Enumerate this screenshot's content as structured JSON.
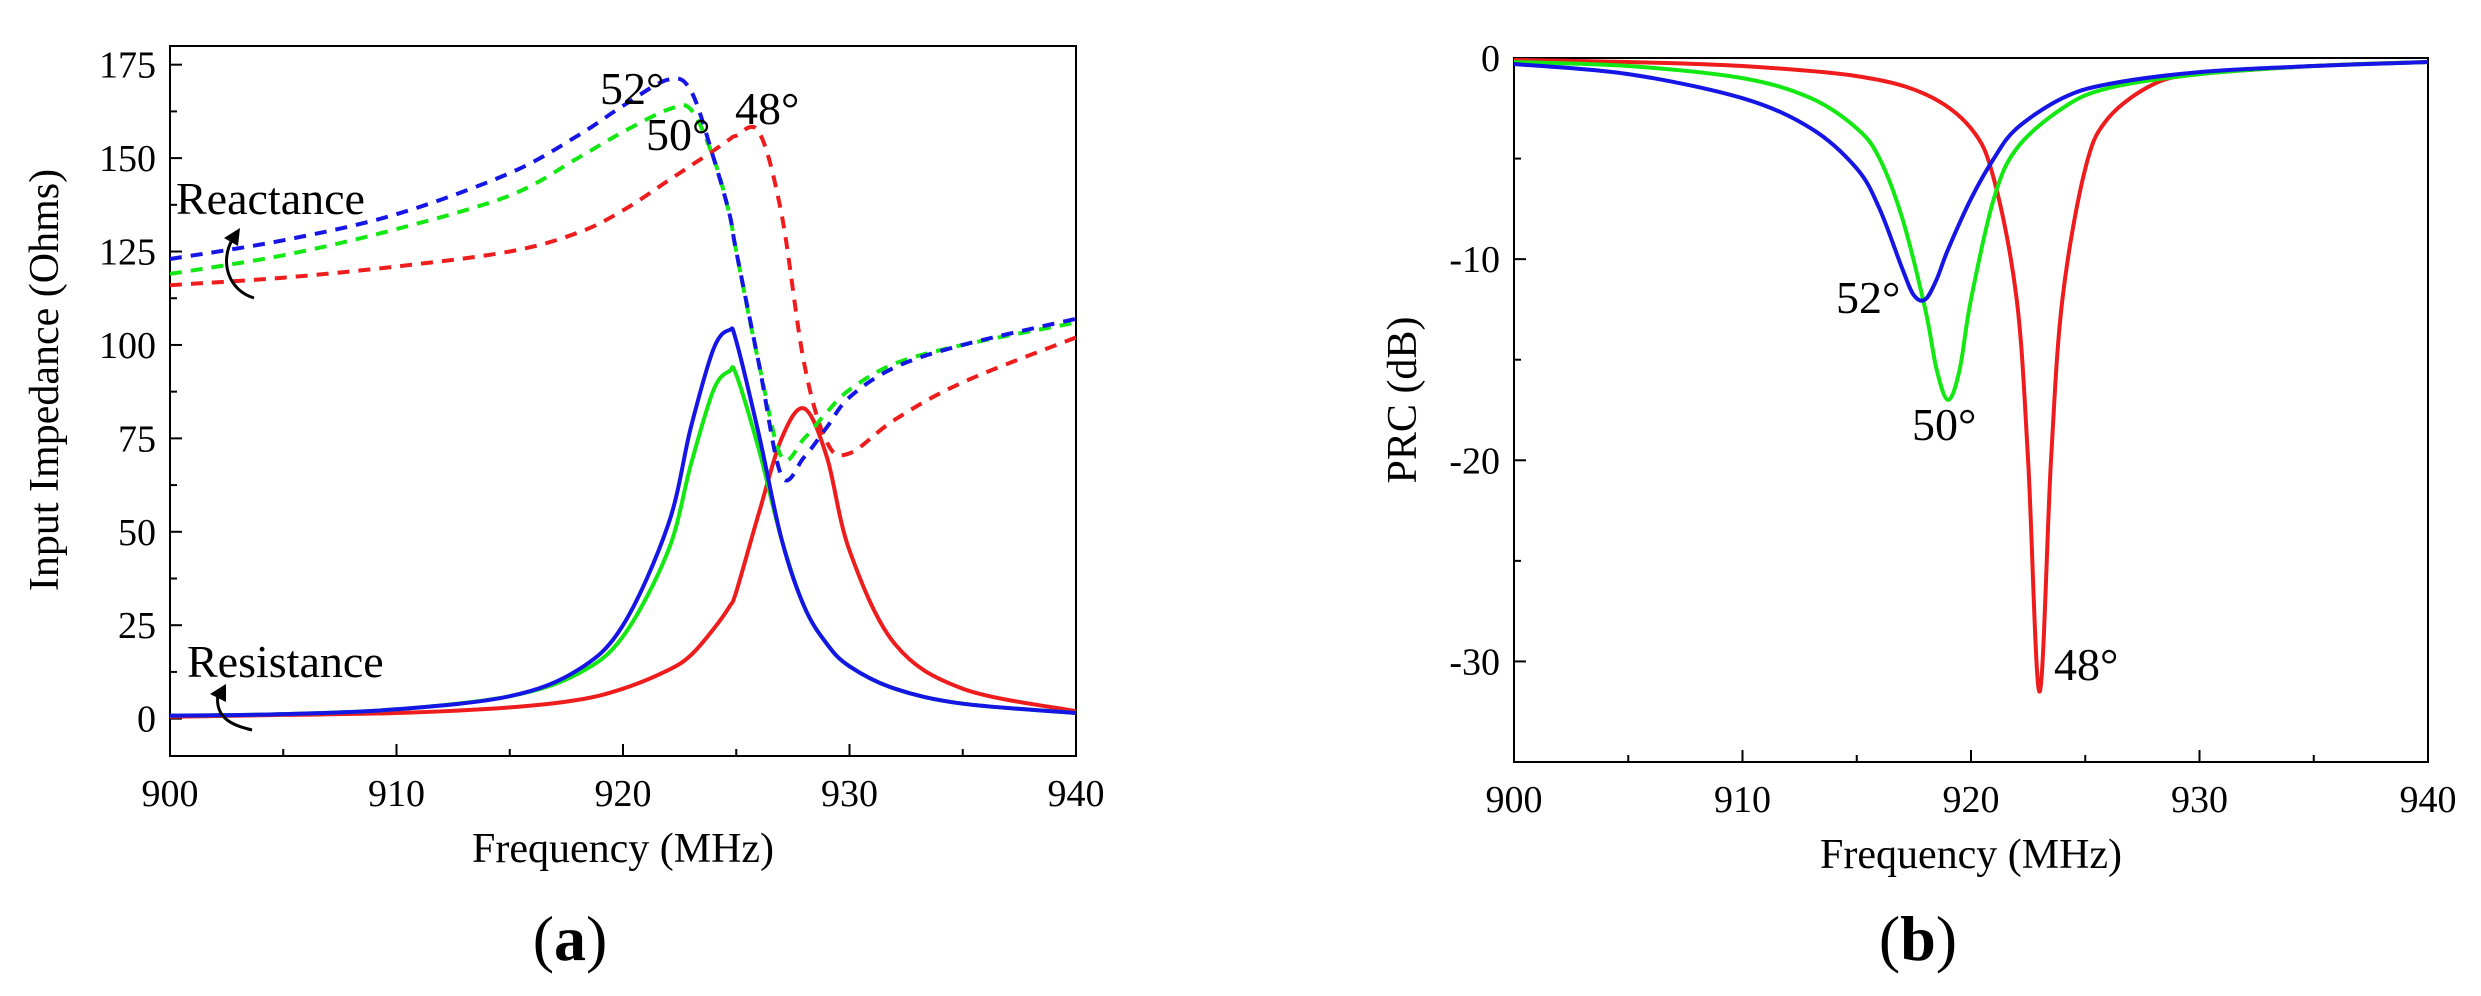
{
  "colors": {
    "deg48": "#ee1c1c",
    "deg50": "#13e813",
    "deg52": "#1515e6",
    "axis": "#000000"
  },
  "panels": {
    "a": {
      "label_open": "(",
      "label_letter": "a",
      "label_close": ")",
      "annotations": {
        "reactance": "Reactance",
        "resistance": "Resistance",
        "deg52": "52°",
        "deg50": "50°",
        "deg48": "48°"
      }
    },
    "b": {
      "label_open": "(",
      "label_letter": "b",
      "label_close": ")",
      "annotations": {
        "deg52": "52°",
        "deg50": "50°",
        "deg48": "48°"
      }
    }
  },
  "chart_data": [
    {
      "type": "line",
      "panel": "a",
      "title": "",
      "xlabel": "Frequency (MHz)",
      "ylabel": "Input Impedance (Ohms)",
      "xlim": [
        900,
        940
      ],
      "ylim": [
        -10,
        180
      ],
      "xticks": [
        900,
        910,
        920,
        930,
        940
      ],
      "yticks": [
        0,
        25,
        50,
        75,
        100,
        125,
        150,
        175
      ],
      "x": [
        900,
        905,
        910,
        915,
        918,
        920,
        922,
        923,
        924,
        924.7,
        925,
        926,
        927,
        928,
        929,
        930,
        932,
        935,
        940
      ],
      "series": [
        {
          "name": "Resistance 48°",
          "style": "solid",
          "color": "deg48",
          "values": [
            0.5,
            1,
            1.5,
            3,
            5,
            8,
            13,
            17,
            24,
            30,
            34,
            55,
            75,
            83,
            70,
            45,
            20,
            8,
            2
          ]
        },
        {
          "name": "Resistance 50°",
          "style": "solid",
          "color": "deg50",
          "values": [
            0.8,
            1.2,
            2.5,
            6,
            12,
            22,
            45,
            68,
            88,
            93,
            92,
            72,
            48,
            30,
            20,
            14,
            8,
            4,
            1.5
          ]
        },
        {
          "name": "Resistance 52°",
          "style": "solid",
          "color": "deg52",
          "values": [
            0.8,
            1.2,
            2.5,
            6,
            13,
            25,
            52,
            78,
            99,
            104,
            101,
            76,
            48,
            30,
            20,
            14,
            8,
            4,
            1.5
          ]
        },
        {
          "name": "Reactance 48°",
          "style": "dashed",
          "color": "deg48",
          "values": [
            116,
            118,
            121,
            125,
            130,
            136,
            144,
            148,
            152,
            155,
            156,
            157,
            135,
            95,
            74,
            71,
            80,
            90,
            102
          ]
        },
        {
          "name": "Reactance 50°",
          "style": "dashed",
          "color": "deg50",
          "values": [
            119,
            124,
            131,
            140,
            150,
            157,
            163,
            163,
            150,
            135,
            125,
            95,
            70,
            75,
            82,
            88,
            95,
            100,
            106
          ]
        },
        {
          "name": "Reactance 52°",
          "style": "dashed",
          "color": "deg52",
          "values": [
            123,
            128,
            135,
            146,
            156,
            164,
            171,
            168,
            150,
            135,
            125,
            95,
            65,
            70,
            78,
            86,
            94,
            100,
            107
          ]
        }
      ]
    },
    {
      "type": "line",
      "panel": "b",
      "title": "",
      "xlabel": "Frequency (MHz)",
      "ylabel": "PRC (dB)",
      "xlim": [
        900,
        940
      ],
      "ylim": [
        -35,
        0
      ],
      "xticks": [
        900,
        910,
        920,
        930,
        940
      ],
      "yticks": [
        0,
        -10,
        -20,
        -30
      ],
      "series": [
        {
          "name": "48°",
          "color": "deg48",
          "style": "solid",
          "x": [
            900,
            905,
            910,
            915,
            918,
            920,
            921,
            922,
            922.5,
            923,
            923.5,
            924,
            925,
            926,
            928,
            930,
            935,
            940
          ],
          "values": [
            -0.1,
            -0.2,
            -0.4,
            -0.9,
            -1.8,
            -3.5,
            -6,
            -12,
            -20,
            -31.5,
            -20,
            -12,
            -5.5,
            -3,
            -1.3,
            -0.8,
            -0.4,
            -0.2
          ]
        },
        {
          "name": "50°",
          "color": "deg50",
          "style": "solid",
          "x": [
            900,
            905,
            910,
            913,
            915,
            916,
            917,
            918,
            918.5,
            919,
            919.5,
            920,
            921,
            922,
            924,
            926,
            930,
            935,
            940
          ],
          "values": [
            -0.2,
            -0.4,
            -1,
            -2,
            -3.5,
            -5,
            -8,
            -12.5,
            -15.5,
            -17,
            -15.5,
            -12,
            -7,
            -4.5,
            -2.5,
            -1.5,
            -0.8,
            -0.4,
            -0.2
          ]
        },
        {
          "name": "52°",
          "color": "deg52",
          "style": "solid",
          "x": [
            900,
            905,
            910,
            913,
            915,
            916,
            917,
            917.5,
            918,
            918.5,
            919,
            920,
            921,
            922,
            924,
            926,
            930,
            935,
            940
          ],
          "values": [
            -0.3,
            -0.8,
            -2,
            -3.5,
            -5.5,
            -7.5,
            -10.5,
            -11.8,
            -12,
            -11,
            -9.5,
            -7,
            -5,
            -3.5,
            -2,
            -1.3,
            -0.7,
            -0.4,
            -0.2
          ]
        }
      ]
    }
  ]
}
